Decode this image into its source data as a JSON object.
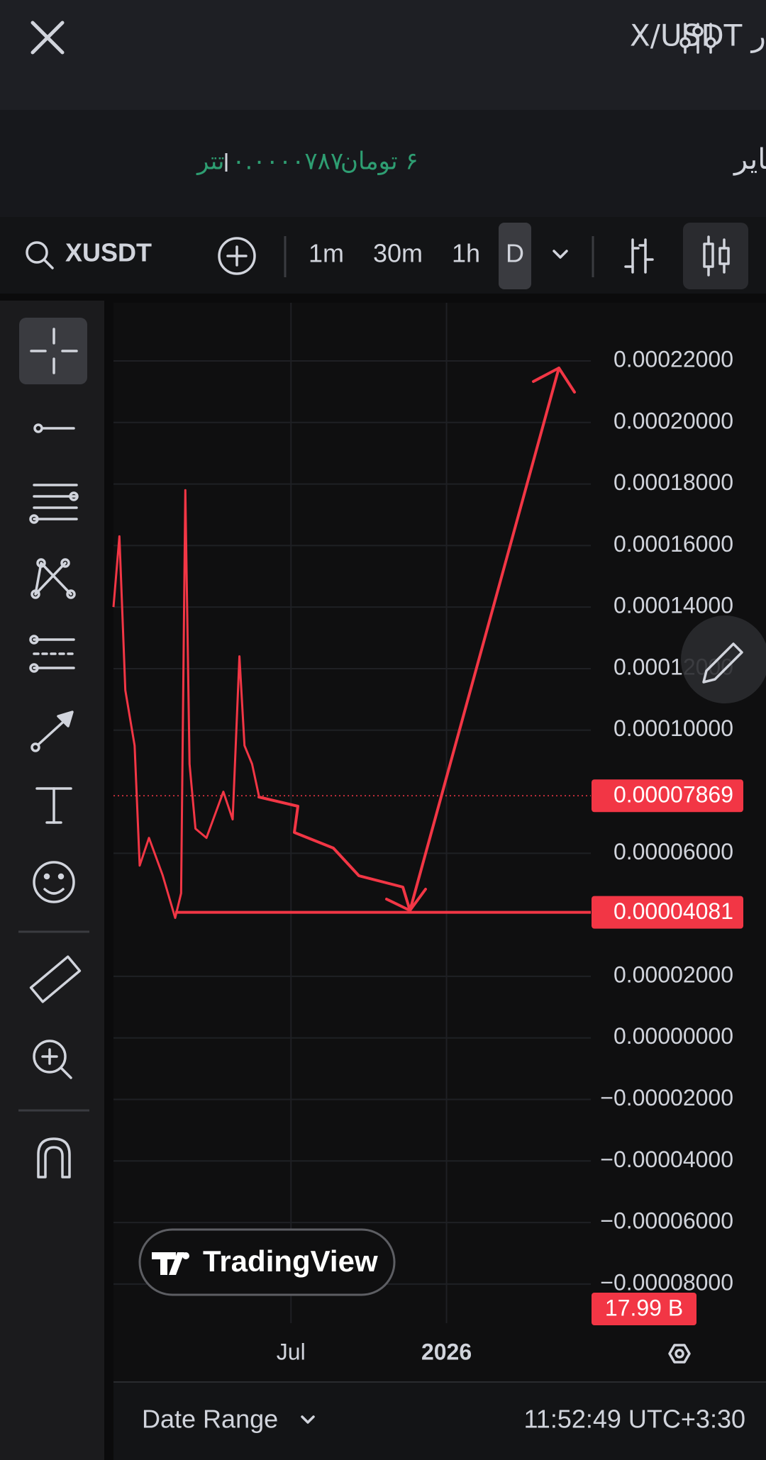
{
  "header": {
    "title": "نمودار X/USDT"
  },
  "market": {
    "name": "ایکس امپایر",
    "price_toman": "۶ تومان",
    "price_usdt": "۰.۰۰۰۰۷۸۷ تتر"
  },
  "toolbar": {
    "symbol": "XUSDT",
    "intervals": [
      "1m",
      "30m",
      "1h",
      "D"
    ]
  },
  "watermark": "TradingView",
  "chart_data": {
    "type": "line",
    "x": [
      0,
      7,
      14,
      25,
      31,
      42,
      58,
      73,
      80,
      85,
      90,
      97,
      110,
      130,
      141,
      149,
      155,
      164,
      172
    ],
    "values": [
      0.00014,
      0.000163,
      0.000113,
      9.5e-05,
      5.6e-05,
      6.5e-05,
      5.3e-05,
      3.9e-05,
      4.7e-05,
      0.000178,
      8.9e-05,
      6.8e-05,
      6.5e-05,
      8e-05,
      7.1e-05,
      0.000124,
      9.5e-05,
      8.9e-05,
      7.87e-05
    ],
    "color": "#f23645",
    "xlim": [
      0,
      772
    ],
    "xticks": [
      {
        "value": 210,
        "label": "Jul"
      },
      {
        "value": 394,
        "label": "2026"
      }
    ],
    "ylim": [
      -9.27e-05,
      0.0002389
    ],
    "yticks": [
      {
        "value": 0.00022,
        "label": "0.00022000"
      },
      {
        "value": 0.0002,
        "label": "0.00020000"
      },
      {
        "value": 0.00018,
        "label": "0.00018000"
      },
      {
        "value": 0.00016,
        "label": "0.00016000"
      },
      {
        "value": 0.00014,
        "label": "0.00014000"
      },
      {
        "value": 0.00012,
        "label": "0.00012000"
      },
      {
        "value": 0.0001,
        "label": "0.00010000"
      },
      {
        "value": 6e-05,
        "label": "0.00006000"
      },
      {
        "value": 2e-05,
        "label": "0.00002000"
      },
      {
        "value": 0,
        "label": "0.00000000"
      },
      {
        "value": -2e-05,
        "label": "−0.00002000"
      },
      {
        "value": -4e-05,
        "label": "−0.00004000"
      },
      {
        "value": -6e-05,
        "label": "−0.00006000"
      },
      {
        "value": -8e-05,
        "label": "−0.00008000"
      }
    ],
    "price_lines": [
      7.869e-05,
      4.081e-05
    ],
    "volume_label": "17.99 B",
    "grid": true
  },
  "footer": {
    "date_range": "Date Range",
    "time": "11:52:49 UTC+3:30"
  }
}
